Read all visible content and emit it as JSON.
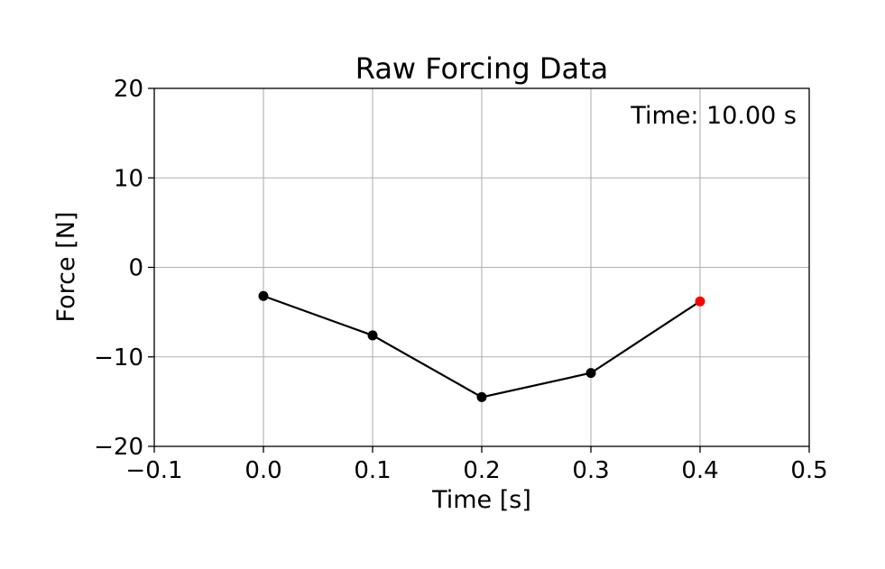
{
  "chart_data": {
    "type": "line",
    "title": "Raw Forcing Data",
    "xlabel": "Time [s]",
    "ylabel": "Force [N]",
    "xlim": [
      -0.1,
      0.5
    ],
    "ylim": [
      -20,
      20
    ],
    "xticks": [
      -0.1,
      0.0,
      0.1,
      0.2,
      0.3,
      0.4,
      0.5
    ],
    "xtick_labels": [
      "−0.1",
      "0.0",
      "0.1",
      "0.2",
      "0.3",
      "0.4",
      "0.5"
    ],
    "yticks": [
      -20,
      -10,
      0,
      10,
      20
    ],
    "ytick_labels": [
      "−20",
      "−10",
      "0",
      "10",
      "20"
    ],
    "grid": true,
    "annotation": "Time: 10.00 s",
    "series": [
      {
        "x": [
          0.0,
          0.1,
          0.2,
          0.3,
          0.4
        ],
        "y": [
          -3.2,
          -7.6,
          -14.5,
          -11.8,
          -3.8
        ],
        "color": "#000000",
        "highlight_index": 4,
        "highlight_color": "#ff0000"
      }
    ]
  }
}
